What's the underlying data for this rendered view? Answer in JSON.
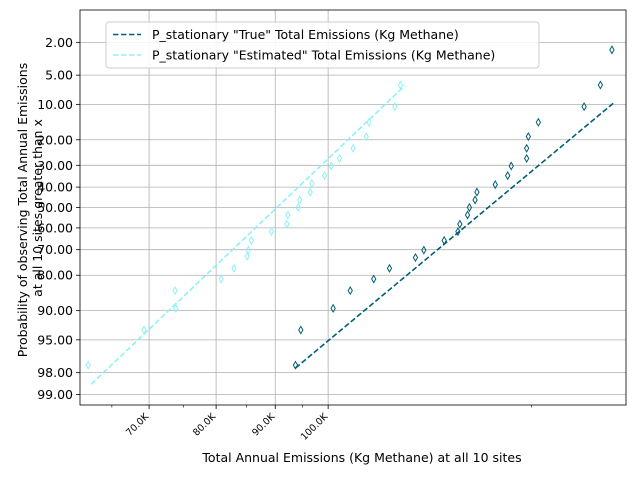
{
  "chart_data": {
    "type": "scatter",
    "title": "",
    "xlabel": "Total Annual Emissions (Kg Methane) at all 10 sites",
    "ylabel_lines": [
      "Probability of observing Total Annual Emissions",
      "at all 10 sites greater than x"
    ],
    "x_scale": "log",
    "y_scale": "probit",
    "xlim": [
      61000,
      181000
    ],
    "ylim_probability_pct": [
      0.7,
      99.3
    ],
    "grid": true,
    "legend_position": "top-left",
    "x_ticks": [
      {
        "value": 70000,
        "label": "70.0K"
      },
      {
        "value": 80000,
        "label": "80.0K"
      },
      {
        "value": 90000,
        "label": "90.0K"
      },
      {
        "value": 100000,
        "label": "100.0K"
      }
    ],
    "x_minor_ticks": [
      65000,
      75000,
      85000,
      95000,
      150000
    ],
    "y_ticks": [
      {
        "value": 2,
        "label": "2.00"
      },
      {
        "value": 5,
        "label": "5.00"
      },
      {
        "value": 10,
        "label": "10.00"
      },
      {
        "value": 20,
        "label": "20.00"
      },
      {
        "value": 30,
        "label": "30.00"
      },
      {
        "value": 40,
        "label": "40.00"
      },
      {
        "value": 50,
        "label": "50.00"
      },
      {
        "value": 60,
        "label": "60.00"
      },
      {
        "value": 70,
        "label": "70.00"
      },
      {
        "value": 80,
        "label": "80.00"
      },
      {
        "value": 90,
        "label": "90.00"
      },
      {
        "value": 95,
        "label": "95.00"
      },
      {
        "value": 98,
        "label": "98.00"
      },
      {
        "value": 99,
        "label": "99.00"
      }
    ],
    "series": [
      {
        "name": "P_stationary \"True\" Total Emissions (Kg Methane)",
        "color": "#005f73",
        "line_x": [
          93700,
          177000
        ],
        "line_y": [
          97.7,
          9.5
        ],
        "points": [
          [
            93700,
            97.5
          ],
          [
            94700,
            93.6
          ],
          [
            101000,
            89.5
          ],
          [
            104500,
            84.9
          ],
          [
            109500,
            81.3
          ],
          [
            113000,
            77.5
          ],
          [
            119000,
            73.3
          ],
          [
            121000,
            70.2
          ],
          [
            126000,
            65.9
          ],
          [
            129500,
            61.8
          ],
          [
            130000,
            58.2
          ],
          [
            132000,
            53.7
          ],
          [
            132500,
            50.0
          ],
          [
            134000,
            46.3
          ],
          [
            134500,
            42.4
          ],
          [
            139500,
            38.8
          ],
          [
            143000,
            34.6
          ],
          [
            144000,
            30.3
          ],
          [
            148500,
            27.1
          ],
          [
            148500,
            23.1
          ],
          [
            149000,
            18.9
          ],
          [
            152000,
            14.5
          ],
          [
            166500,
            10.5
          ],
          [
            172000,
            6.4
          ],
          [
            176000,
            2.5
          ]
        ]
      },
      {
        "name": "P_stationary \"Estimated\" Total Emissions (Kg Methane)",
        "color": "#8ef1f7",
        "line_x": [
          62400,
          116500
        ],
        "line_y": [
          98.6,
          6.5
        ],
        "points": [
          [
            62000,
            97.5
          ],
          [
            69300,
            93.6
          ],
          [
            73800,
            89.5
          ],
          [
            73700,
            84.9
          ],
          [
            80800,
            81.3
          ],
          [
            82900,
            77.5
          ],
          [
            85100,
            72.8
          ],
          [
            85300,
            70.2
          ],
          [
            85800,
            65.9
          ],
          [
            89300,
            61.8
          ],
          [
            92100,
            58.2
          ],
          [
            92300,
            53.7
          ],
          [
            94200,
            50.0
          ],
          [
            94500,
            46.3
          ],
          [
            96500,
            42.4
          ],
          [
            96800,
            38.4
          ],
          [
            99300,
            34.6
          ],
          [
            100600,
            30.3
          ],
          [
            102300,
            27.1
          ],
          [
            105100,
            23.1
          ],
          [
            107900,
            18.9
          ],
          [
            108500,
            14.5
          ],
          [
            114200,
            10.5
          ],
          [
            115500,
            6.4
          ]
        ]
      }
    ]
  }
}
